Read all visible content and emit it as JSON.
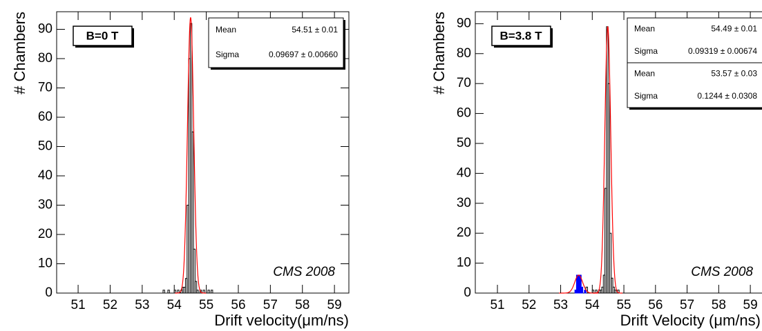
{
  "chart_data": [
    {
      "type": "histogram",
      "label_box": "B=0 T",
      "annotation": "CMS 2008",
      "x_label": "Drift velocity(μm/ns)",
      "y_label": "# Chambers",
      "xlim": [
        50.33,
        59.45
      ],
      "ylim": [
        0,
        96
      ],
      "xticks": [
        51,
        52,
        53,
        54,
        55,
        56,
        57,
        58,
        59
      ],
      "yticks": [
        0,
        10,
        20,
        30,
        40,
        50,
        60,
        70,
        80,
        90
      ],
      "bins": [
        53.6,
        53.65,
        53.7,
        53.75,
        53.8,
        53.85,
        53.9,
        53.95,
        54.0,
        54.05,
        54.1,
        54.15,
        54.2,
        54.25,
        54.3,
        54.35,
        54.4,
        54.45,
        54.5,
        54.55,
        54.6,
        54.65,
        54.7,
        54.75,
        54.8,
        54.85,
        54.9,
        54.95,
        55.0,
        55.05,
        55.1,
        55.15,
        55.2
      ],
      "series": [
        {
          "color": "#000000",
          "fill": false,
          "values": [
            0,
            1,
            0,
            0,
            1,
            0,
            0,
            0,
            1,
            0,
            1,
            0,
            1,
            2,
            2,
            5,
            30,
            80,
            92,
            55,
            15,
            4,
            1,
            0,
            1,
            0,
            1,
            0,
            0,
            1,
            0,
            1
          ]
        }
      ],
      "fits": [
        {
          "color": "#ff0000",
          "mean": 54.51,
          "sigma": 0.09697,
          "peak": 94
        }
      ],
      "stats": [
        [
          {
            "name": "Mean",
            "value": "54.51 ± 0.01"
          },
          {
            "name": "Sigma",
            "value": "0.09697 ± 0.00660"
          }
        ]
      ]
    },
    {
      "type": "histogram",
      "label_box": "B=3.8 T",
      "annotation": "CMS 2008",
      "x_label": "Drift Velocity (μm/ns)",
      "y_label": "# Chambers",
      "xlim": [
        50.3,
        59.85
      ],
      "ylim": [
        0,
        94
      ],
      "xticks": [
        51,
        52,
        53,
        54,
        55,
        56,
        57,
        58,
        59
      ],
      "yticks": [
        0,
        10,
        20,
        30,
        40,
        50,
        60,
        70,
        80,
        90
      ],
      "bins": [
        53.3,
        53.35,
        53.4,
        53.45,
        53.5,
        53.55,
        53.6,
        53.65,
        53.7,
        53.75,
        53.8,
        53.85,
        53.9,
        53.95,
        54.0,
        54.05,
        54.1,
        54.15,
        54.2,
        54.25,
        54.3,
        54.35,
        54.4,
        54.45,
        54.5,
        54.55,
        54.6,
        54.65,
        54.7,
        54.75,
        54.8,
        54.85,
        54.9,
        54.95,
        55.0
      ],
      "series": [
        {
          "color": "#000000",
          "fill": false,
          "values": [
            0,
            0,
            0,
            0,
            0,
            0,
            0,
            0,
            0,
            0,
            2,
            0,
            0,
            0,
            1,
            0,
            1,
            0,
            1,
            1,
            2,
            6,
            35,
            89,
            70,
            20,
            5,
            2,
            1,
            0,
            1,
            0,
            0,
            0
          ]
        },
        {
          "color": "#0000ff",
          "fill": true,
          "values": [
            0,
            0,
            0,
            1,
            6,
            6,
            6,
            2,
            0,
            1,
            0,
            0,
            0,
            0,
            0,
            0,
            0,
            0,
            0,
            0,
            0,
            0,
            0,
            0,
            0,
            0,
            0,
            0,
            0,
            0,
            0,
            0,
            0,
            0
          ]
        }
      ],
      "fits": [
        {
          "color": "#ff0000",
          "mean": 54.49,
          "sigma": 0.09319,
          "peak": 89
        },
        {
          "color": "#ff0000",
          "mean": 53.57,
          "sigma": 0.1244,
          "peak": 6
        }
      ],
      "stats": [
        [
          {
            "name": "Mean",
            "value": "54.49 ± 0.01"
          },
          {
            "name": "Sigma",
            "value": "0.09319 ± 0.00674"
          }
        ],
        [
          {
            "name": "Mean",
            "value": "53.57 ± 0.03"
          },
          {
            "name": "Sigma",
            "value": "0.1244 ± 0.0308"
          }
        ]
      ]
    }
  ]
}
